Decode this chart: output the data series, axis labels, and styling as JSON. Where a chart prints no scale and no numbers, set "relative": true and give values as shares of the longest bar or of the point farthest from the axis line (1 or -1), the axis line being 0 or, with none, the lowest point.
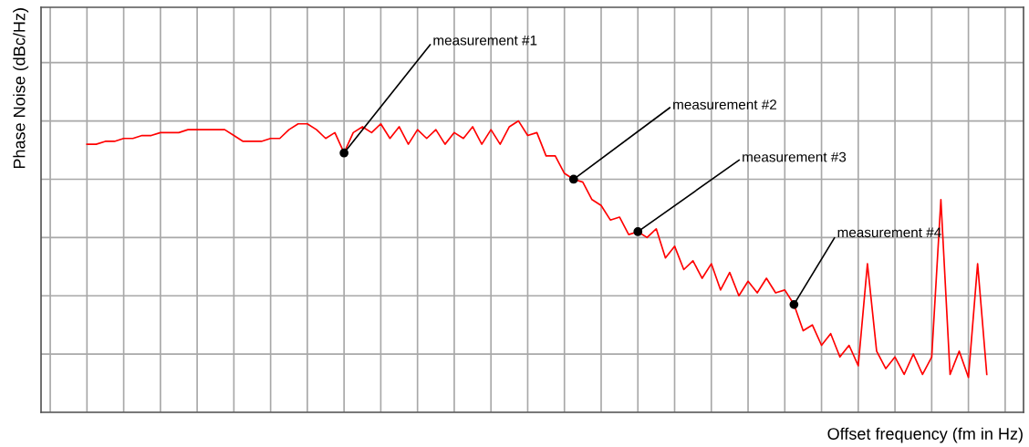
{
  "chart_data": {
    "type": "line",
    "relative": true,
    "xlabel": "Offset frequency (fm in Hz)",
    "ylabel": "Phase Noise (dBc/Hz)",
    "categories": [
      null,
      null,
      null,
      null,
      null,
      null,
      null,
      null,
      null,
      null,
      null,
      null,
      null,
      null,
      null,
      null,
      null,
      null,
      null,
      null,
      null,
      null,
      null,
      null,
      null,
      null,
      null,
      null,
      null,
      null,
      null,
      null,
      null,
      null,
      null,
      null,
      null,
      null,
      null,
      null,
      null,
      null,
      null,
      null,
      null,
      null,
      null,
      null,
      null,
      null,
      null,
      null,
      null,
      null,
      null,
      null,
      null,
      null,
      null,
      null,
      null,
      null,
      null,
      null,
      null,
      null,
      null,
      null,
      null,
      null,
      null,
      null,
      null,
      null,
      null,
      null,
      null,
      null,
      null,
      null,
      null,
      null,
      null,
      null,
      null,
      null,
      null,
      null,
      null,
      null,
      null,
      null,
      null,
      null,
      null,
      null,
      null,
      null,
      null
    ],
    "series": [
      {
        "color": "#ff0000",
        "values": [
          0.92,
          0.92,
          0.93,
          0.93,
          0.94,
          0.94,
          0.95,
          0.95,
          0.96,
          0.96,
          0.96,
          0.97,
          0.97,
          0.97,
          0.97,
          0.97,
          0.95,
          0.93,
          0.93,
          0.93,
          0.94,
          0.94,
          0.97,
          0.99,
          0.99,
          0.97,
          0.94,
          0.96,
          0.89,
          0.96,
          0.98,
          0.96,
          0.99,
          0.94,
          0.98,
          0.92,
          0.97,
          0.94,
          0.97,
          0.92,
          0.96,
          0.94,
          0.98,
          0.92,
          0.97,
          0.92,
          0.98,
          1,
          0.95,
          0.96,
          0.88,
          0.88,
          0.82,
          0.8,
          0.79,
          0.73,
          0.71,
          0.66,
          0.67,
          0.61,
          0.62,
          0.6,
          0.63,
          0.53,
          0.57,
          0.49,
          0.52,
          0.46,
          0.51,
          0.42,
          0.48,
          0.4,
          0.45,
          0.41,
          0.46,
          0.41,
          0.42,
          0.37,
          0.28,
          0.3,
          0.23,
          0.27,
          0.19,
          0.23,
          0.16,
          0.51,
          0.21,
          0.15,
          0.19,
          0.13,
          0.2,
          0.13,
          0.19,
          0.73,
          0.13,
          0.21,
          0.12,
          0.51,
          0.13
        ]
      }
    ],
    "annotations": [
      "measurement #1",
      "measurement #2",
      "measurement #3",
      "measurement #4"
    ],
    "grid": true,
    "tick_labels": false
  }
}
